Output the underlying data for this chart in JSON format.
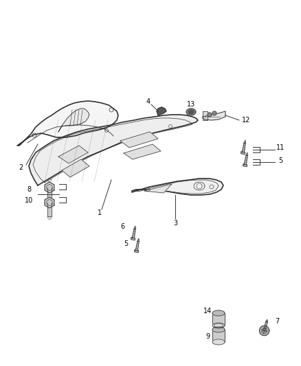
{
  "bg_color": "#ffffff",
  "fig_width": 4.38,
  "fig_height": 5.33,
  "dpi": 100,
  "line_color": "#333333",
  "label_fontsize": 7,
  "lw_main": 1.2,
  "lw_inner": 0.6
}
